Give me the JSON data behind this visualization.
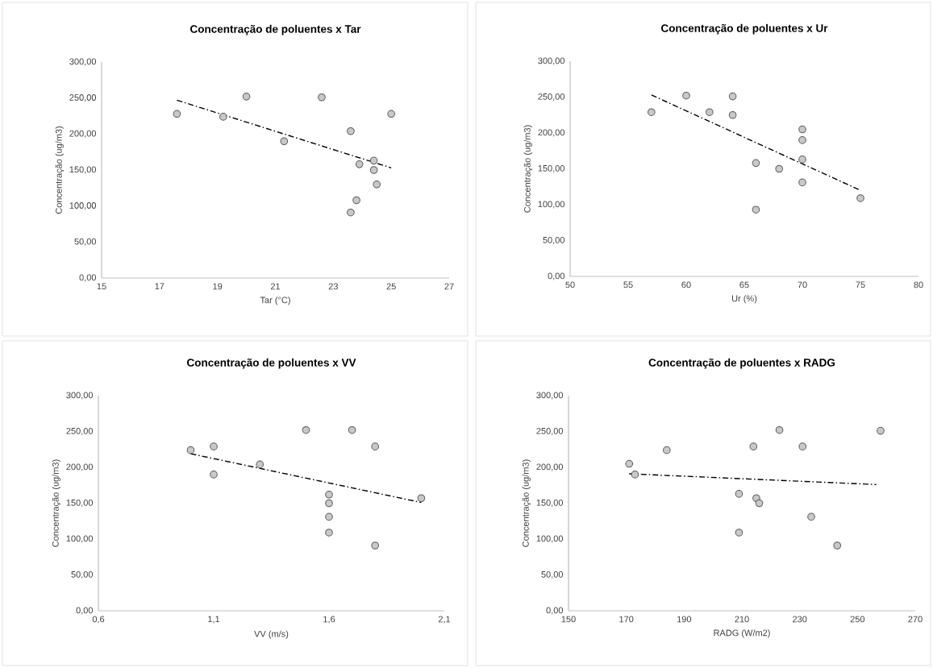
{
  "chart_data": [
    {
      "type": "scatter",
      "title": "Concentração de poluentes x Tar",
      "xlabel": "Tar (°C)",
      "ylabel": "Concentração (ug/m3)",
      "grid": false,
      "xlim": [
        15,
        27
      ],
      "xticks": [
        15,
        17,
        19,
        21,
        23,
        25,
        27
      ],
      "ylim": [
        0,
        300
      ],
      "yticks": [
        {
          "value": 0,
          "label": "0,00"
        },
        {
          "value": 50,
          "label": "50,00"
        },
        {
          "value": 100,
          "label": "100,00"
        },
        {
          "value": 150,
          "label": "150,00"
        },
        {
          "value": 200,
          "label": "200,00"
        },
        {
          "value": 250,
          "label": "250,00"
        },
        {
          "value": 300,
          "label": "300,00"
        }
      ],
      "series": [
        {
          "color": "#c8c8c8",
          "marker": "circle",
          "x": [
            17.6,
            19.2,
            20.0,
            21.3,
            22.6,
            23.6,
            25.0,
            24.4,
            23.9,
            24.4,
            24.5,
            23.8,
            23.6
          ],
          "values": [
            228,
            224,
            252,
            190,
            251,
            204,
            228,
            163,
            158,
            150,
            130,
            108,
            91
          ]
        },
        {
          "type": "line",
          "color": "#000000",
          "line_style": "dashdot",
          "marker": "none",
          "x": [
            17.6,
            25.0
          ],
          "values": [
            247,
            153
          ]
        }
      ]
    },
    {
      "type": "scatter",
      "title": "Concentração de poluentes x Ur",
      "xlabel": "Ur (%)",
      "ylabel": "Concentração (ug/m3)",
      "grid": false,
      "xlim": [
        50,
        80
      ],
      "xticks": [
        50,
        55,
        60,
        65,
        70,
        75,
        80
      ],
      "ylim": [
        0,
        300
      ],
      "yticks": [
        {
          "value": 0,
          "label": "0,00"
        },
        {
          "value": 50,
          "label": "50,00"
        },
        {
          "value": 100,
          "label": "100,00"
        },
        {
          "value": 150,
          "label": "150,00"
        },
        {
          "value": 200,
          "label": "200,00"
        },
        {
          "value": 250,
          "label": "250,00"
        },
        {
          "value": 300,
          "label": "300,00"
        }
      ],
      "series": [
        {
          "color": "#c8c8c8",
          "marker": "circle",
          "x": [
            57,
            60,
            62,
            64,
            64,
            70,
            70,
            70,
            66,
            68,
            70,
            75,
            66
          ],
          "values": [
            229,
            252,
            229,
            251,
            225,
            205,
            190,
            163,
            158,
            150,
            131,
            109,
            93
          ]
        },
        {
          "type": "line",
          "color": "#000000",
          "line_style": "dashdot",
          "marker": "none",
          "x": [
            57,
            75
          ],
          "values": [
            253,
            120
          ]
        }
      ]
    },
    {
      "type": "scatter",
      "title": "Concentração de poluentes x VV",
      "xlabel": "VV (m/s)",
      "ylabel": "Concentração (ug/m3)",
      "grid": false,
      "xlim": [
        0.6,
        2.1
      ],
      "xticks": [
        {
          "value": 0.6,
          "label": "0,6"
        },
        {
          "value": 1.1,
          "label": "1,1"
        },
        {
          "value": 1.6,
          "label": "1,6"
        },
        {
          "value": 2.1,
          "label": "2,1"
        }
      ],
      "ylim": [
        0,
        300
      ],
      "yticks": [
        {
          "value": 0,
          "label": "0,00"
        },
        {
          "value": 50,
          "label": "50,00"
        },
        {
          "value": 100,
          "label": "100,00"
        },
        {
          "value": 150,
          "label": "150,00"
        },
        {
          "value": 200,
          "label": "200,00"
        },
        {
          "value": 250,
          "label": "250,00"
        },
        {
          "value": 300,
          "label": "300,00"
        }
      ],
      "series": [
        {
          "color": "#c8c8c8",
          "marker": "circle",
          "x": [
            1.0,
            1.1,
            1.1,
            1.3,
            1.5,
            1.7,
            1.8,
            1.6,
            1.6,
            1.6,
            1.6,
            1.8,
            2.0
          ],
          "values": [
            224,
            229,
            190,
            204,
            252,
            252,
            229,
            162,
            150,
            131,
            109,
            91,
            157
          ]
        },
        {
          "type": "line",
          "color": "#000000",
          "line_style": "dashdot",
          "marker": "none",
          "x": [
            1.0,
            2.0
          ],
          "values": [
            219,
            151
          ]
        }
      ]
    },
    {
      "type": "scatter",
      "title": "Concentração de poluentes x RADG",
      "xlabel": "RADG  (W/m2)",
      "ylabel": "Concentração (ug/m3)",
      "grid": false,
      "xlim": [
        150,
        270
      ],
      "xticks": [
        150,
        170,
        190,
        210,
        230,
        250,
        270
      ],
      "ylim": [
        0,
        300
      ],
      "yticks": [
        {
          "value": 0,
          "label": "0,00"
        },
        {
          "value": 50,
          "label": "50,00"
        },
        {
          "value": 100,
          "label": "100,00"
        },
        {
          "value": 150,
          "label": "150,00"
        },
        {
          "value": 200,
          "label": "200,00"
        },
        {
          "value": 250,
          "label": "250,00"
        },
        {
          "value": 300,
          "label": "300,00"
        }
      ],
      "series": [
        {
          "color": "#c8c8c8",
          "marker": "circle",
          "x": [
            171,
            173,
            184,
            209,
            209,
            214,
            215,
            216,
            223,
            231,
            234,
            243,
            258
          ],
          "values": [
            205,
            190,
            224,
            163,
            109,
            229,
            157,
            150,
            252,
            229,
            131,
            91,
            251
          ]
        },
        {
          "type": "line",
          "color": "#000000",
          "line_style": "dashdot",
          "marker": "none",
          "x": [
            171,
            256.5
          ],
          "values": [
            191,
            176
          ]
        }
      ]
    }
  ]
}
